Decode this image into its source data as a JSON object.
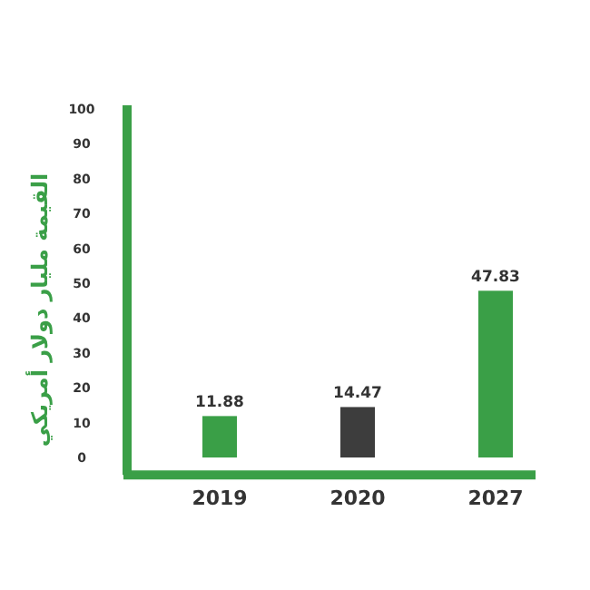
{
  "chart_data": {
    "type": "bar",
    "ylabel": "القيمة مليار دولار أمريكي",
    "categories": [
      "2019",
      "2020",
      "2027"
    ],
    "values": [
      11.88,
      14.47,
      47.83
    ],
    "colors": [
      "#3a9f47",
      "#3d3d3d",
      "#3a9f47"
    ],
    "ylim": [
      -5,
      100
    ],
    "yticks": [
      0,
      10,
      20,
      30,
      40,
      50,
      60,
      70,
      80,
      90,
      100
    ],
    "data_labels": true,
    "grid": false
  }
}
